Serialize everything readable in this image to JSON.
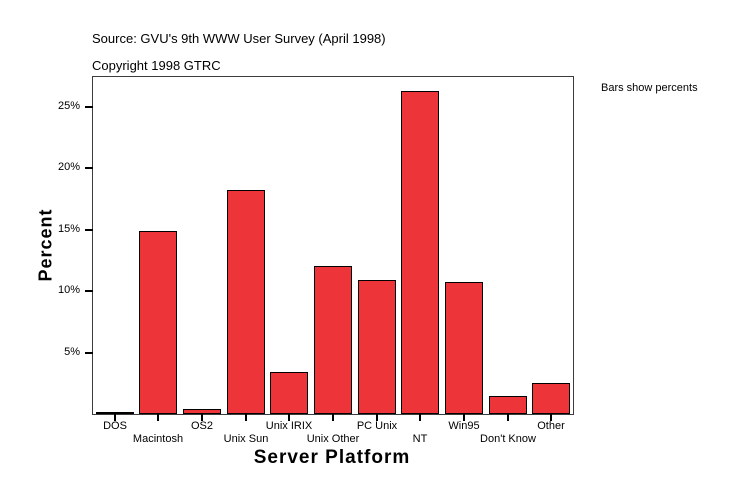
{
  "header": {
    "source_line": "Source: GVU's 9th WWW User Survey (April 1998)",
    "copyright_line": "Copyright 1998 GTRC"
  },
  "note": "Bars show percents",
  "chart_data": {
    "type": "bar",
    "title": "",
    "xlabel": "Server Platform",
    "ylabel": "Percent",
    "categories": [
      "DOS",
      "Macintosh",
      "OS2",
      "Unix Sun",
      "Unix IRIX",
      "Unix Other",
      "PC Unix",
      "NT",
      "Win95",
      "Don't Know",
      "Other"
    ],
    "values": [
      0.2,
      14.9,
      0.4,
      18.2,
      3.4,
      12.0,
      10.9,
      26.3,
      10.7,
      1.5,
      2.5
    ],
    "value_unit": "percent",
    "yticks": [
      5,
      10,
      15,
      20,
      25
    ],
    "ytick_labels": [
      "5%",
      "10%",
      "15%",
      "20%",
      "25%"
    ],
    "ylim": [
      0,
      27.4
    ],
    "grid": false,
    "legend": "none",
    "x_labels_staggered": true,
    "colors": {
      "bar_fill": "#ED3438",
      "bar_border": "#000000",
      "frame": "#3C3C3C",
      "tick": "#000000",
      "text": "#000000",
      "background": "#FFFFFF"
    }
  }
}
